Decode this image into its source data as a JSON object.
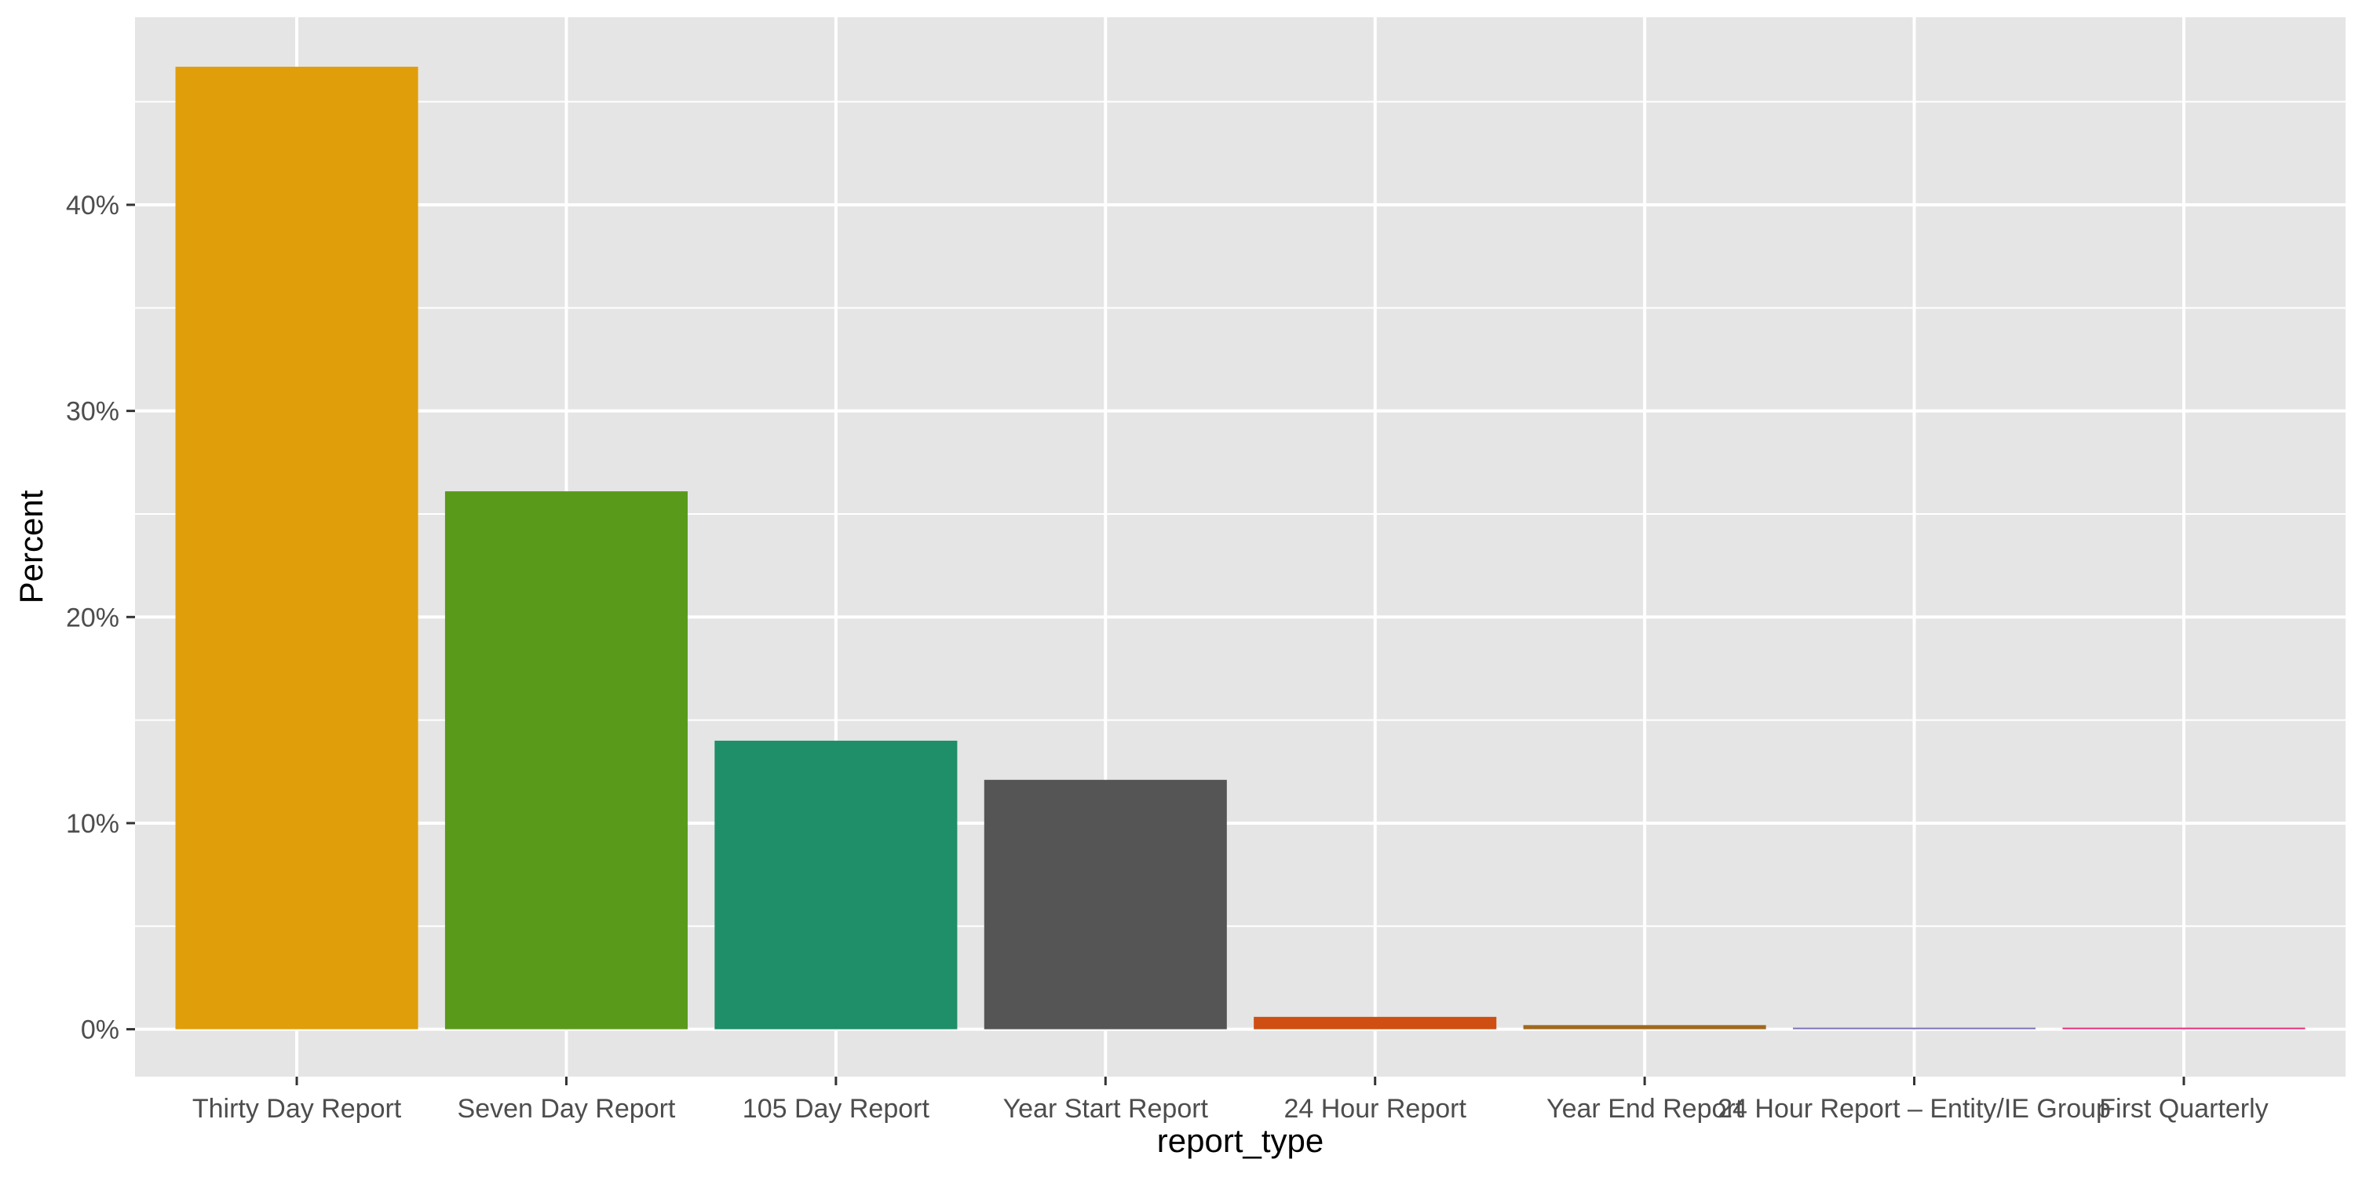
{
  "chart_data": {
    "type": "bar",
    "title": "",
    "xlabel": "report_type",
    "ylabel": "Percent",
    "categories": [
      "Thirty Day Report",
      "Seven Day Report",
      "105 Day Report",
      "Year Start Report",
      "24 Hour Report",
      "Year End Report",
      "24 Hour Report – Entity/IE Group",
      "First Quarterly"
    ],
    "values": [
      46.7,
      26.1,
      14.0,
      12.1,
      0.6,
      0.2,
      0.05,
      0.02
    ],
    "colors": [
      "#E09E0B",
      "#5A9A1B",
      "#1E8F68",
      "#555555",
      "#CF4E12",
      "#A0681E",
      "#7E72B8",
      "#E62E7B"
    ],
    "ylim": [
      -2.3,
      49.1
    ],
    "yticks": [
      0,
      10,
      20,
      30,
      40
    ],
    "ytick_labels": [
      "0%",
      "10%",
      "20%",
      "30%",
      "40%"
    ],
    "grid": true,
    "legend": "none",
    "panel_background": "#E5E5E5",
    "grid_color": "#FFFFFF"
  }
}
